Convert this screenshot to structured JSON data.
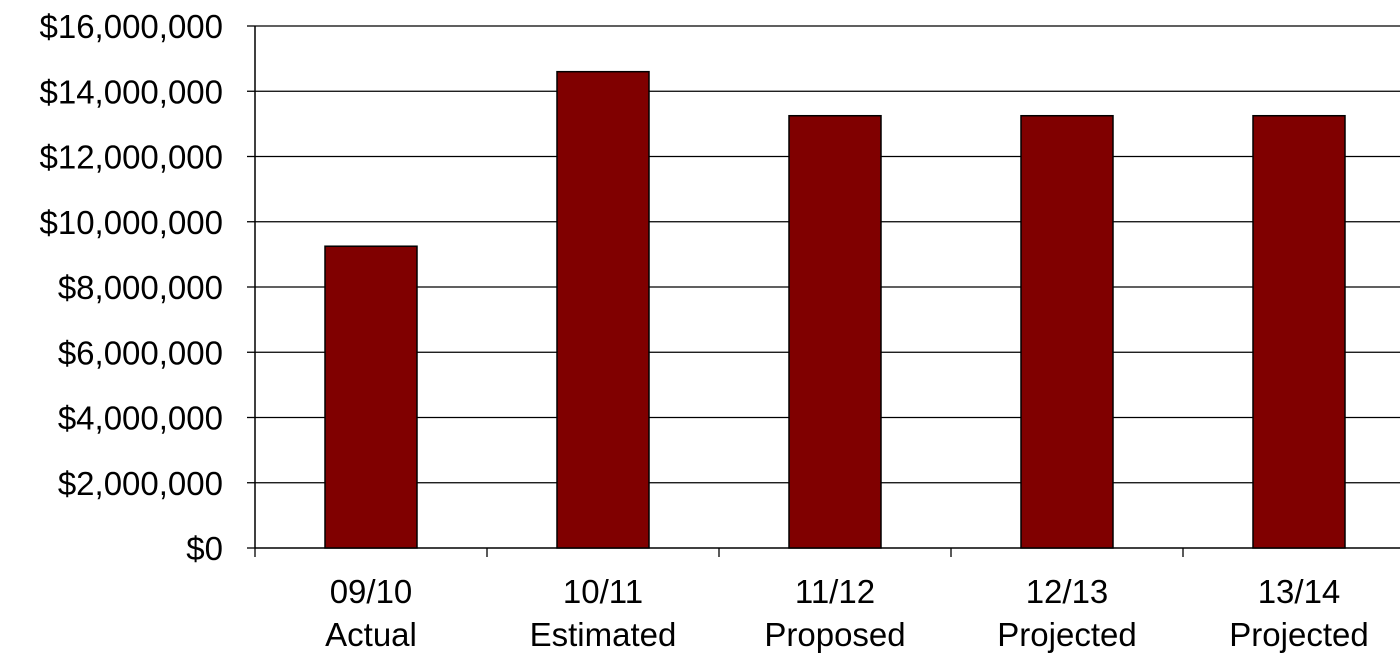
{
  "chart_data": {
    "type": "bar",
    "categories": [
      [
        "09/10",
        "Actual"
      ],
      [
        "10/11",
        "Estimated"
      ],
      [
        "11/12",
        "Proposed"
      ],
      [
        "12/13",
        "Projected"
      ],
      [
        "13/14",
        "Projected"
      ]
    ],
    "values": [
      9250000,
      14600000,
      13250000,
      13250000,
      13250000
    ],
    "ylim": [
      0,
      16000000
    ],
    "yticks": [
      0,
      2000000,
      4000000,
      6000000,
      8000000,
      10000000,
      12000000,
      14000000,
      16000000
    ],
    "ytick_labels": [
      "$0",
      "$2,000,000",
      "$4,000,000",
      "$6,000,000",
      "$8,000,000",
      "$10,000,000",
      "$12,000,000",
      "$14,000,000",
      "$16,000,000"
    ],
    "title": "",
    "xlabel": "",
    "ylabel": "",
    "grid": true,
    "legend": "none",
    "bar_color": "#800000",
    "bar_edge_color": "#000000"
  }
}
